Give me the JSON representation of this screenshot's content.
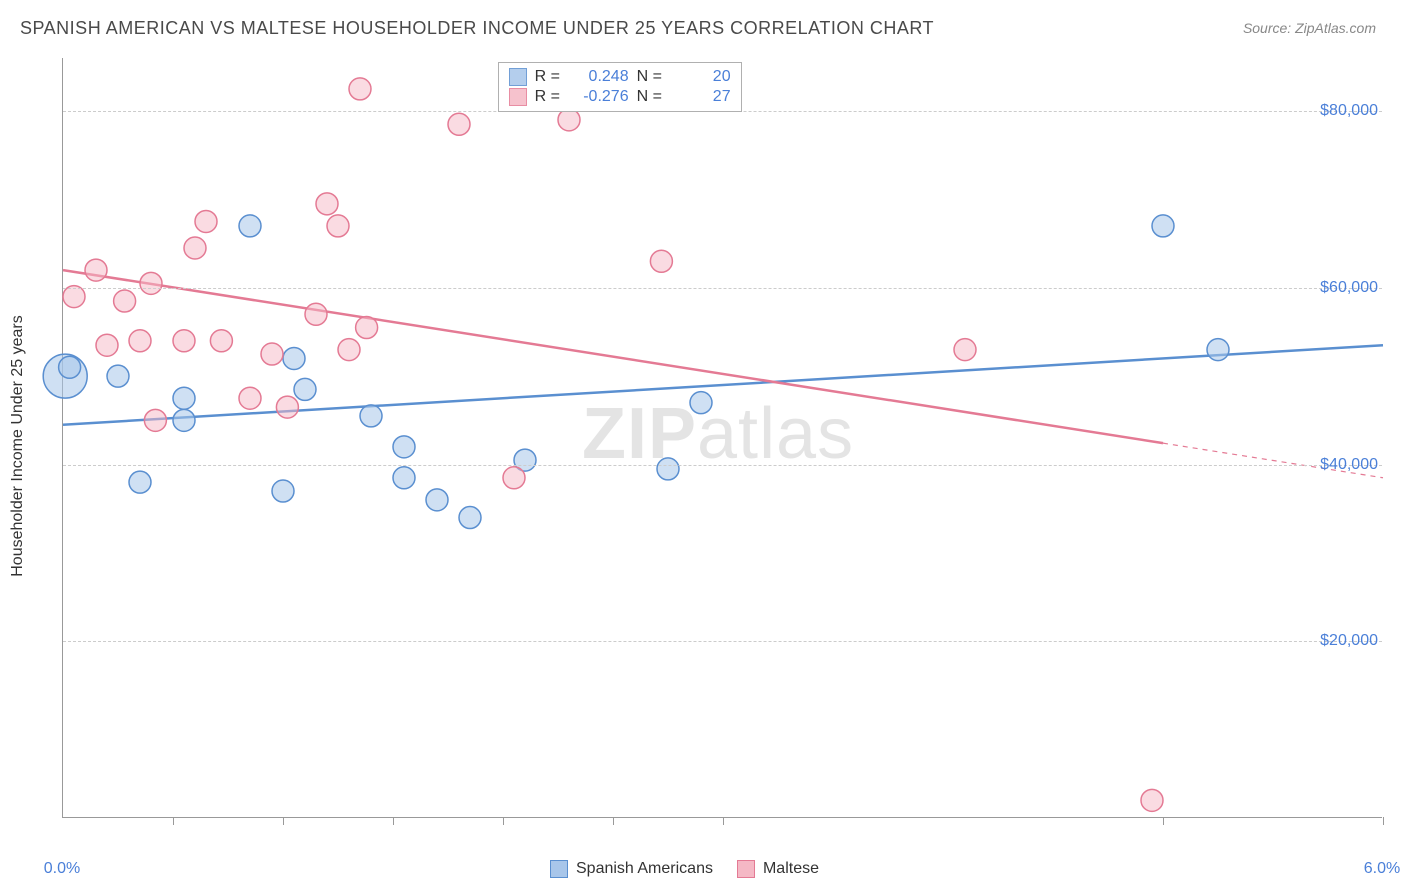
{
  "title": "SPANISH AMERICAN VS MALTESE HOUSEHOLDER INCOME UNDER 25 YEARS CORRELATION CHART",
  "source_label": "Source:",
  "source_value": "ZipAtlas.com",
  "y_axis_label": "Householder Income Under 25 years",
  "watermark_a": "ZIP",
  "watermark_b": "atlas",
  "chart": {
    "type": "scatter-with-regression",
    "x_min": 0.0,
    "x_max": 6.0,
    "y_min": 0,
    "y_max": 86000,
    "x_tick_label_min": "0.0%",
    "x_tick_label_max": "6.0%",
    "x_minor_ticks": [
      0.5,
      1.0,
      1.5,
      2.0,
      2.5,
      3.0,
      5.0,
      6.0
    ],
    "y_gridlines": [
      {
        "value": 20000,
        "label": "$20,000"
      },
      {
        "value": 40000,
        "label": "$40,000"
      },
      {
        "value": 60000,
        "label": "$60,000"
      },
      {
        "value": 80000,
        "label": "$80,000"
      }
    ],
    "background_color": "#ffffff",
    "grid_color": "#cccccc",
    "axis_color": "#999999",
    "tick_label_color": "#4a7fd8",
    "marker_radius": 11,
    "marker_stroke_width": 1.5,
    "regression_line_width": 2.5,
    "series": [
      {
        "name": "Spanish Americans",
        "fill": "#a8c6ea",
        "stroke": "#5a8fd0",
        "fill_opacity": 0.55,
        "R": "0.248",
        "N": "20",
        "regression": {
          "x1": 0.0,
          "y1": 44500,
          "x2": 6.0,
          "y2": 53500,
          "x_extent": 6.0
        },
        "points": [
          {
            "x": 0.01,
            "y": 50000,
            "r": 22
          },
          {
            "x": 0.03,
            "y": 51000
          },
          {
            "x": 0.25,
            "y": 50000
          },
          {
            "x": 0.35,
            "y": 38000
          },
          {
            "x": 0.55,
            "y": 47500
          },
          {
            "x": 0.55,
            "y": 45000
          },
          {
            "x": 0.85,
            "y": 67000
          },
          {
            "x": 1.0,
            "y": 37000
          },
          {
            "x": 1.05,
            "y": 52000
          },
          {
            "x": 1.1,
            "y": 48500
          },
          {
            "x": 1.4,
            "y": 45500
          },
          {
            "x": 1.55,
            "y": 38500
          },
          {
            "x": 1.55,
            "y": 42000
          },
          {
            "x": 1.7,
            "y": 36000
          },
          {
            "x": 1.85,
            "y": 34000
          },
          {
            "x": 2.1,
            "y": 40500
          },
          {
            "x": 2.75,
            "y": 39500
          },
          {
            "x": 2.9,
            "y": 47000
          },
          {
            "x": 5.0,
            "y": 67000
          },
          {
            "x": 5.25,
            "y": 53000
          }
        ]
      },
      {
        "name": "Maltese",
        "fill": "#f5b8c5",
        "stroke": "#e47a94",
        "fill_opacity": 0.5,
        "R": "-0.276",
        "N": "27",
        "regression": {
          "x1": 0.0,
          "y1": 62000,
          "x2": 6.0,
          "y2": 38500,
          "x_extent": 5.0
        },
        "points": [
          {
            "x": 0.05,
            "y": 59000
          },
          {
            "x": 0.15,
            "y": 62000
          },
          {
            "x": 0.2,
            "y": 53500
          },
          {
            "x": 0.28,
            "y": 58500
          },
          {
            "x": 0.35,
            "y": 54000
          },
          {
            "x": 0.4,
            "y": 60500
          },
          {
            "x": 0.42,
            "y": 45000
          },
          {
            "x": 0.55,
            "y": 54000
          },
          {
            "x": 0.6,
            "y": 64500
          },
          {
            "x": 0.65,
            "y": 67500
          },
          {
            "x": 0.72,
            "y": 54000
          },
          {
            "x": 0.85,
            "y": 47500
          },
          {
            "x": 0.95,
            "y": 52500
          },
          {
            "x": 1.02,
            "y": 46500
          },
          {
            "x": 1.15,
            "y": 57000
          },
          {
            "x": 1.2,
            "y": 69500
          },
          {
            "x": 1.25,
            "y": 67000
          },
          {
            "x": 1.3,
            "y": 53000
          },
          {
            "x": 1.35,
            "y": 82500
          },
          {
            "x": 1.38,
            "y": 55500
          },
          {
            "x": 1.8,
            "y": 78500
          },
          {
            "x": 2.05,
            "y": 38500
          },
          {
            "x": 2.15,
            "y": 83000
          },
          {
            "x": 2.3,
            "y": 79000
          },
          {
            "x": 2.72,
            "y": 63000
          },
          {
            "x": 4.1,
            "y": 53000
          },
          {
            "x": 4.95,
            "y": 2000
          }
        ]
      }
    ]
  },
  "legend_top": {
    "R_label": "R  =",
    "N_label": "N  ="
  },
  "legend_bottom": {
    "series1": "Spanish Americans",
    "series2": "Maltese"
  }
}
